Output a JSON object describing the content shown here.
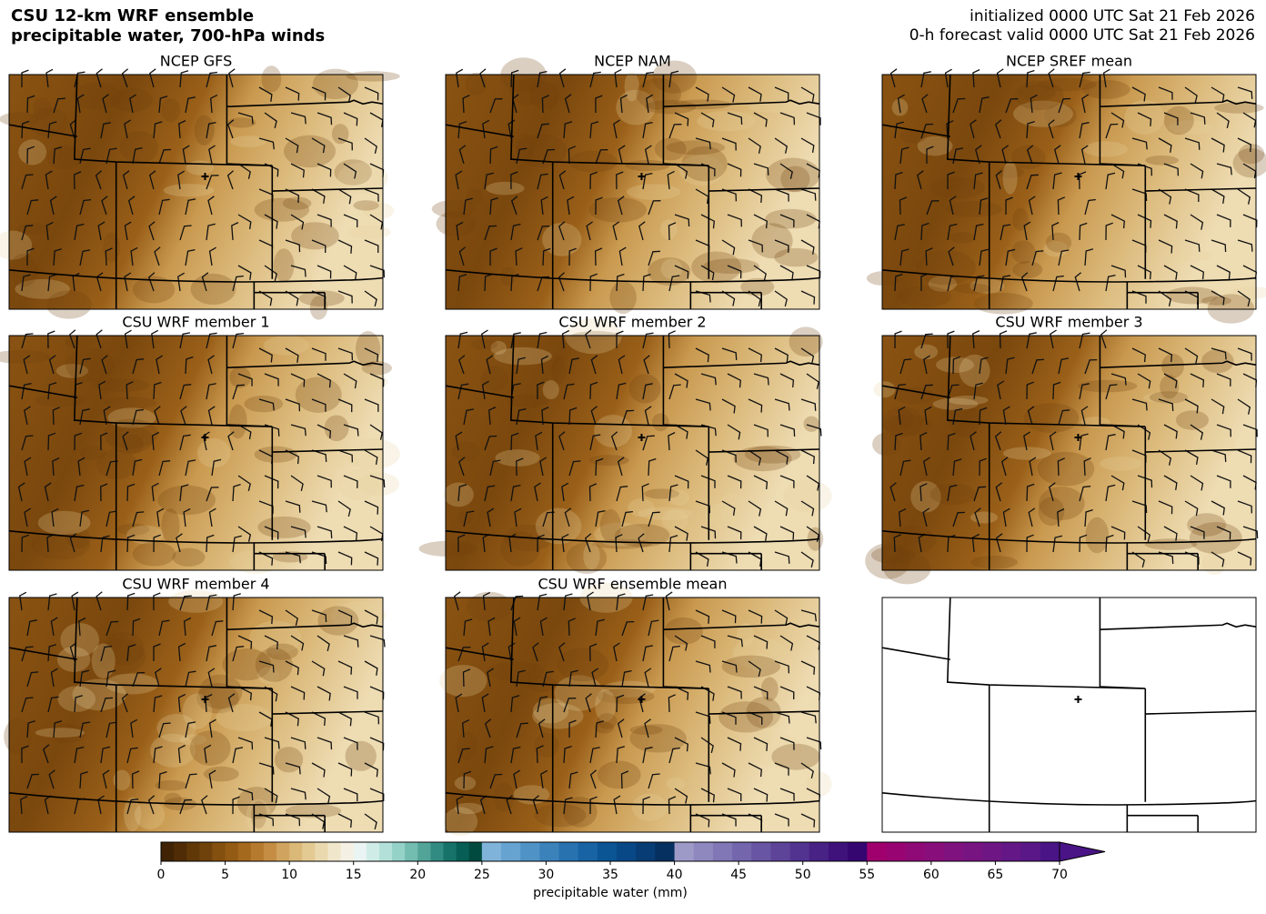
{
  "header": {
    "title_lines": [
      "CSU 12-km WRF ensemble",
      "precipitable water, 700-hPa winds"
    ],
    "valid_lines": [
      "initialized 0000 UTC Sat 21 Feb 2026",
      "0-h forecast valid 0000 UTC Sat 21 Feb 2026"
    ]
  },
  "panels": [
    {
      "title": "NCEP GFS"
    },
    {
      "title": "NCEP NAM"
    },
    {
      "title": "NCEP SREF mean"
    },
    {
      "title": "CSU WRF member 1"
    },
    {
      "title": "CSU WRF member 2"
    },
    {
      "title": "CSU WRF member 3"
    },
    {
      "title": "CSU WRF member 4"
    },
    {
      "title": "CSU WRF ensemble mean"
    }
  ],
  "chart_data": {
    "type": "colorbar",
    "xlabel": "precipitable water (mm)",
    "xlim": [
      0,
      70
    ],
    "xticks": [
      0,
      5,
      10,
      15,
      20,
      25,
      30,
      35,
      40,
      45,
      50,
      55,
      60,
      65,
      70
    ],
    "extend": "max",
    "bands": [
      {
        "range": [
          0,
          25
        ],
        "colors": [
          "#3f2304",
          "#4f2c05",
          "#603808",
          "#70420b",
          "#84500f",
          "#935b14",
          "#a5691d",
          "#b67a2e",
          "#c48d43",
          "#d0a35f",
          "#dab878",
          "#e3ca93",
          "#ead9af",
          "#f0e6cb",
          "#f5f0e4",
          "#eaf4f2",
          "#d0ece7",
          "#b3e1d9",
          "#94d2c7",
          "#73bcb0",
          "#52a499",
          "#328b82",
          "#17736a",
          "#065e55",
          "#014a40"
        ]
      },
      {
        "range": [
          25,
          40
        ],
        "colors": [
          "#7fb3d9",
          "#66a3d0",
          "#4f93c6",
          "#3b82bb",
          "#2872b0",
          "#1863a3",
          "#0b5595",
          "#084886",
          "#073c74",
          "#06305f"
        ]
      },
      {
        "range": [
          40,
          55
        ],
        "colors": [
          "#9e9ac8",
          "#8f88bf",
          "#8177b6",
          "#7466ad",
          "#6855a3",
          "#5d4499",
          "#52338f",
          "#482284",
          "#3e127a",
          "#350570"
        ]
      },
      {
        "range": [
          55,
          70
        ],
        "colors": [
          "#a0006e",
          "#980572",
          "#900a77",
          "#880f7b",
          "#80127f",
          "#771482",
          "#6e1684",
          "#641786",
          "#5a1787",
          "#4a1486"
        ]
      }
    ]
  }
}
